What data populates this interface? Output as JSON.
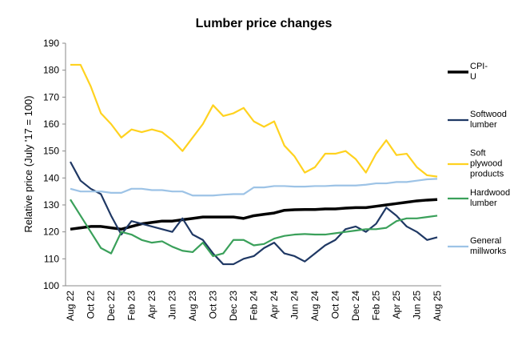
{
  "chart_data": {
    "type": "line",
    "title": "Lumber price changes",
    "y_label": "Relative price (July '17 = 100)",
    "categories": [
      "Aug 22",
      null,
      "Oct 22",
      null,
      "Dec 22",
      null,
      "Feb 23",
      null,
      "Apr 23",
      null,
      "Jun 23",
      null,
      "Aug 23",
      null,
      "Oct 23",
      null,
      "Dec 23",
      null,
      "Feb 24",
      null,
      "Apr 24",
      null,
      "Jun 24",
      null,
      "Aug 24",
      null,
      "Oct 24",
      null,
      "Dec 24",
      null,
      "Feb 25",
      null,
      "Apr 25",
      null,
      "Jun 25",
      null,
      "Aug 25"
    ],
    "ylim": [
      100,
      190
    ],
    "yticks": [
      100,
      110,
      120,
      130,
      140,
      150,
      160,
      170,
      180,
      190
    ],
    "grid": false,
    "legend": "right",
    "series": [
      {
        "name": "CPI-U",
        "color": "#000000",
        "values": [
          121,
          121.5,
          122,
          122,
          121.5,
          121,
          122,
          123,
          123.5,
          124,
          124,
          124.5,
          125,
          125.5,
          125.5,
          125.5,
          125.5,
          125,
          126,
          126.5,
          127,
          128,
          128.2,
          128.3,
          128.3,
          128.5,
          128.5,
          128.8,
          129,
          129,
          129.5,
          130,
          130.5,
          131,
          131.5,
          131.8,
          132
        ]
      },
      {
        "name": "Softwood lumber",
        "color": "#1f3864",
        "values": [
          146,
          139,
          136,
          134,
          126,
          119,
          124,
          123,
          122,
          121,
          120,
          125,
          119,
          117,
          112,
          108,
          108,
          110,
          111,
          114,
          116,
          112,
          111,
          109,
          112,
          115,
          117,
          121,
          122,
          120,
          123,
          129,
          126,
          122,
          120,
          117,
          118
        ]
      },
      {
        "name": "Soft plywood products",
        "color": "#ffd21f",
        "values": [
          182,
          182,
          174,
          164,
          160,
          155,
          158,
          157,
          158,
          157,
          154,
          150,
          155,
          160,
          167,
          163,
          164,
          166,
          161,
          159,
          161,
          152,
          148,
          142,
          144,
          149,
          149,
          150,
          147,
          142,
          149,
          154,
          148.5,
          149,
          144,
          141,
          140.5
        ]
      },
      {
        "name": "Hardwood lumber",
        "color": "#3aa05a",
        "values": [
          132,
          126,
          120,
          114,
          112,
          120,
          119,
          117,
          116,
          116.5,
          114.5,
          113,
          112.5,
          116,
          111,
          112,
          117,
          117,
          115,
          115.5,
          117.5,
          118.5,
          119,
          119.2,
          119,
          119,
          119.5,
          120,
          120.5,
          121,
          121,
          121.5,
          124,
          125,
          125,
          125.5,
          126
        ]
      },
      {
        "name": "General millworks",
        "color": "#9dc3e6",
        "values": [
          136,
          135,
          135,
          135,
          134.5,
          134.5,
          136,
          136,
          135.5,
          135.5,
          135,
          135,
          133.5,
          133.5,
          133.5,
          133.8,
          134,
          134,
          136.5,
          136.5,
          137,
          137,
          136.8,
          136.8,
          137,
          137,
          137.2,
          137.2,
          137.2,
          137.5,
          138,
          138,
          138.5,
          138.5,
          139,
          139.5,
          139.7
        ]
      }
    ]
  }
}
